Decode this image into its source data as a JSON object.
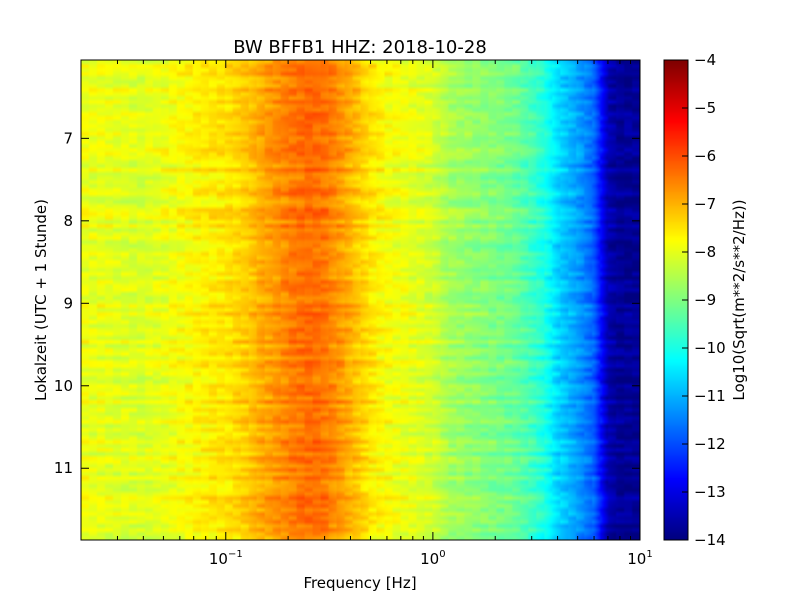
{
  "chart_data": {
    "type": "heatmap",
    "title": "BW BFFB1 HHZ: 2018-10-28",
    "xlabel": "Frequency [Hz]",
    "ylabel": "Lokalzeit (UTC + 1 Stunde)",
    "x_scale": "log",
    "xlim": [
      0.02,
      10
    ],
    "ylim": [
      6.05,
      11.87
    ],
    "y_inverted": true,
    "x_ticks": [
      {
        "value": 0.1,
        "base": "10",
        "exp": "-1"
      },
      {
        "value": 1,
        "base": "10",
        "exp": "0"
      },
      {
        "value": 10,
        "base": "10",
        "exp": "1"
      }
    ],
    "y_ticks": [
      7,
      8,
      9,
      10,
      11
    ],
    "y_tick_labels": [
      "7",
      "8",
      "9",
      "10",
      "11"
    ],
    "colorbar": {
      "label": "Log10(Sqrt(m**2/s**2/Hz))",
      "range": [
        -14,
        -4
      ],
      "ticks": [
        -4,
        -5,
        -6,
        -7,
        -8,
        -9,
        -10,
        -11,
        -12,
        -13,
        -14
      ],
      "tick_labels": [
        "−4",
        "−5",
        "−6",
        "−7",
        "−8",
        "−9",
        "−10",
        "−11",
        "−12",
        "−13",
        "−14"
      ],
      "colormap": "jet"
    },
    "spectrum_profile": {
      "frequency_hz": [
        0.02,
        0.04,
        0.06,
        0.08,
        0.1,
        0.13,
        0.15,
        0.2,
        0.25,
        0.3,
        0.35,
        0.4,
        0.5,
        0.6,
        0.8,
        1.0,
        1.2,
        1.5,
        2.0,
        2.5,
        3.0,
        3.5,
        4.0,
        5.0,
        6.0,
        7.0,
        8.0,
        10.0
      ],
      "log10_amplitude": [
        -7.9,
        -8.1,
        -7.8,
        -7.6,
        -7.5,
        -7.2,
        -6.9,
        -6.5,
        -6.3,
        -6.4,
        -6.7,
        -7.0,
        -7.5,
        -7.8,
        -8.0,
        -8.2,
        -8.6,
        -8.8,
        -9.0,
        -9.2,
        -9.6,
        -10.0,
        -10.6,
        -11.2,
        -11.8,
        -13.5,
        -13.8,
        -13.8
      ]
    }
  }
}
